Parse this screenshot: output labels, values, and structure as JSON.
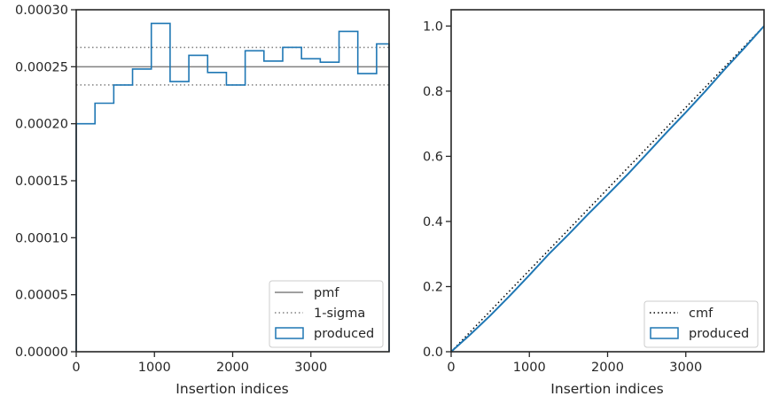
{
  "chart_data": [
    {
      "type": "step",
      "xlabel": "Insertion indices",
      "ylabel": "",
      "xlim": [
        0,
        4000
      ],
      "ylim": [
        0,
        0.0003
      ],
      "xticks": [
        0,
        1000,
        2000,
        3000
      ],
      "xtick_labels": [
        "0",
        "1000",
        "2000",
        "3000"
      ],
      "yticks": [
        0,
        5e-05,
        0.0001,
        0.00015,
        0.0002,
        0.00025,
        0.0003
      ],
      "ytick_labels": [
        "0.00000",
        "0.00005",
        "0.00010",
        "0.00015",
        "0.00020",
        "0.00025",
        "0.00030"
      ],
      "grid": false,
      "legend_position": "lower-right",
      "reference_lines": [
        {
          "name": "pmf",
          "y": 0.00025,
          "style": "solid",
          "color": "#808080"
        },
        {
          "name": "1-sigma",
          "y": 0.000267,
          "style": "dotted",
          "color": "#808080"
        },
        {
          "name": "1-sigma",
          "y": 0.000234,
          "style": "dotted",
          "color": "#808080"
        }
      ],
      "series": [
        {
          "name": "produced",
          "color": "#1f77b4",
          "bin_edges": [
            0,
            240,
            480,
            720,
            960,
            1200,
            1440,
            1680,
            1920,
            2160,
            2400,
            2640,
            2880,
            3120,
            3360,
            3600,
            3840,
            4000
          ],
          "values": [
            0.0002,
            0.000218,
            0.000234,
            0.000248,
            0.000288,
            0.000237,
            0.00026,
            0.000245,
            0.000234,
            0.000264,
            0.000255,
            0.000267,
            0.000257,
            0.000254,
            0.000281,
            0.000244,
            0.00027
          ]
        }
      ],
      "legend": [
        {
          "label": "pmf",
          "kind": "solid-line"
        },
        {
          "label": "1-sigma",
          "kind": "dotted-line"
        },
        {
          "label": "produced",
          "kind": "patch"
        }
      ]
    },
    {
      "type": "line",
      "xlabel": "Insertion indices",
      "ylabel": "",
      "xlim": [
        0,
        4000
      ],
      "ylim": [
        0,
        1.05
      ],
      "xticks": [
        0,
        1000,
        2000,
        3000
      ],
      "xtick_labels": [
        "0",
        "1000",
        "2000",
        "3000"
      ],
      "yticks": [
        0,
        0.2,
        0.4,
        0.6,
        0.8,
        1.0
      ],
      "ytick_labels": [
        "0.0",
        "0.2",
        "0.4",
        "0.6",
        "0.8",
        "1.0"
      ],
      "grid": false,
      "legend_position": "lower-right",
      "series": [
        {
          "name": "cmf",
          "style": "dotted",
          "color": "#000000",
          "x": [
            0,
            4000
          ],
          "y": [
            0,
            1.0
          ]
        },
        {
          "name": "produced",
          "style": "solid",
          "color": "#1f77b4",
          "x": [
            0,
            250,
            500,
            750,
            1000,
            1250,
            1500,
            1750,
            2000,
            2250,
            2500,
            2750,
            3000,
            3250,
            3500,
            3750,
            4000
          ],
          "y": [
            0,
            0.054,
            0.111,
            0.172,
            0.235,
            0.3,
            0.36,
            0.422,
            0.482,
            0.543,
            0.607,
            0.672,
            0.735,
            0.8,
            0.868,
            0.933,
            1.0
          ]
        }
      ],
      "legend": [
        {
          "label": "cmf",
          "kind": "dotted-line"
        },
        {
          "label": "produced",
          "kind": "patch"
        }
      ]
    }
  ]
}
